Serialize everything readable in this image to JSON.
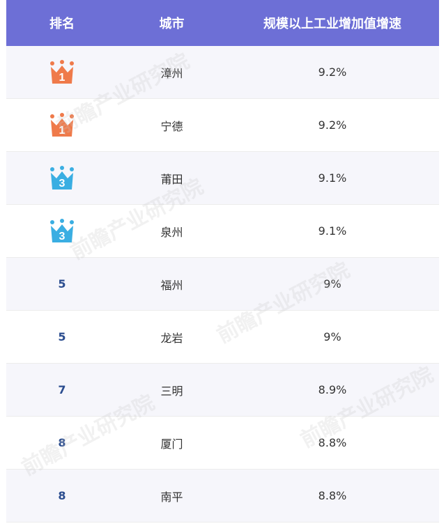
{
  "header": {
    "rank": "排名",
    "city": "城市",
    "value": "规模以上工业增加值增速"
  },
  "colors": {
    "header_bg": "#6d6fd6",
    "crown_gold": "#ef7a4a",
    "crown_blue": "#3aaee2",
    "rank_text": "#2b4d8f"
  },
  "rows": [
    {
      "rank": "1",
      "badge": "crown-orange",
      "city": "漳州",
      "value": "9.2%"
    },
    {
      "rank": "1",
      "badge": "crown-orange",
      "city": "宁德",
      "value": "9.2%"
    },
    {
      "rank": "3",
      "badge": "crown-blue",
      "city": "莆田",
      "value": "9.1%"
    },
    {
      "rank": "3",
      "badge": "crown-blue",
      "city": "泉州",
      "value": "9.1%"
    },
    {
      "rank": "5",
      "badge": "none",
      "city": "福州",
      "value": "9%"
    },
    {
      "rank": "5",
      "badge": "none",
      "city": "龙岩",
      "value": "9%"
    },
    {
      "rank": "7",
      "badge": "none",
      "city": "三明",
      "value": "8.9%"
    },
    {
      "rank": "8",
      "badge": "none",
      "city": "厦门",
      "value": "8.8%"
    },
    {
      "rank": "8",
      "badge": "none",
      "city": "南平",
      "value": "8.8%"
    }
  ],
  "chart_data": {
    "type": "table",
    "columns": [
      "排名",
      "城市",
      "规模以上工业增加值增速"
    ],
    "rows": [
      [
        "1",
        "漳州",
        "9.2%"
      ],
      [
        "1",
        "宁德",
        "9.2%"
      ],
      [
        "3",
        "莆田",
        "9.1%"
      ],
      [
        "3",
        "泉州",
        "9.1%"
      ],
      [
        "5",
        "福州",
        "9%"
      ],
      [
        "5",
        "龙岩",
        "9%"
      ],
      [
        "7",
        "三明",
        "8.9%"
      ],
      [
        "8",
        "厦门",
        "8.8%"
      ],
      [
        "8",
        "南平",
        "8.8%"
      ]
    ]
  },
  "watermarks": [
    "前瞻产业研究院"
  ]
}
